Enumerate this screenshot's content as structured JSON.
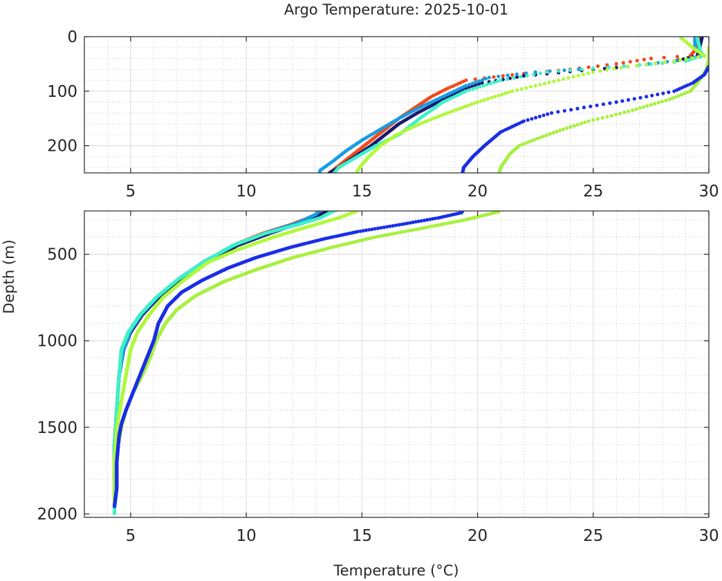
{
  "chart_data": {
    "type": "scatter",
    "title": "Argo Temperature: 2025-10-01",
    "xlabel": "Temperature (°C)",
    "ylabel": "Depth (m)",
    "grid": true,
    "panels": [
      {
        "name": "upper",
        "xlim": [
          3,
          30
        ],
        "ylim": [
          0,
          250
        ],
        "xticks": [
          5,
          10,
          15,
          20,
          25,
          30
        ],
        "yticks": [
          0,
          100,
          200
        ],
        "xtick_labels": [
          "5",
          "10",
          "15",
          "20",
          "25",
          "30"
        ],
        "ytick_labels": [
          "0",
          "100",
          "200"
        ]
      },
      {
        "name": "lower",
        "xlim": [
          3,
          30
        ],
        "ylim": [
          250,
          2020
        ],
        "xticks": [
          5,
          10,
          15,
          20,
          25,
          30
        ],
        "yticks": [
          500,
          1000,
          1500,
          2000
        ],
        "xtick_labels": [
          "5",
          "10",
          "15",
          "20",
          "25",
          "30"
        ],
        "ytick_labels": [
          "500",
          "1000",
          "1500",
          "2000"
        ]
      }
    ],
    "series": [
      {
        "name": "profile-orange",
        "color": "#f24a18",
        "points": [
          [
            29.6,
            2
          ],
          [
            29.5,
            20
          ],
          [
            29.2,
            35
          ],
          [
            27.5,
            40
          ],
          [
            26.0,
            50
          ],
          [
            24.0,
            60
          ],
          [
            21.5,
            70
          ],
          [
            19.5,
            80
          ],
          [
            18.7,
            95
          ],
          [
            18.0,
            110
          ],
          [
            17.3,
            130
          ],
          [
            16.6,
            150
          ],
          [
            16.0,
            170
          ],
          [
            15.4,
            190
          ],
          [
            14.8,
            210
          ],
          [
            14.2,
            230
          ],
          [
            13.6,
            250
          ],
          [
            12.9,
            280
          ],
          [
            11.9,
            330
          ],
          [
            10.7,
            380
          ],
          [
            9.4,
            450
          ],
          [
            8.2,
            550
          ],
          [
            7.1,
            650
          ],
          [
            6.2,
            750
          ],
          [
            5.5,
            850
          ],
          [
            5.0,
            950
          ],
          [
            4.7,
            1050
          ],
          [
            4.5,
            1200
          ],
          [
            4.4,
            1400
          ],
          [
            4.3,
            1600
          ],
          [
            4.3,
            1800
          ]
        ]
      },
      {
        "name": "profile-navy",
        "color": "#1a1a6e",
        "points": [
          [
            29.7,
            2
          ],
          [
            29.6,
            20
          ],
          [
            29.5,
            35
          ],
          [
            28.5,
            45
          ],
          [
            26.5,
            55
          ],
          [
            24.5,
            62
          ],
          [
            22.0,
            72
          ],
          [
            20.2,
            85
          ],
          [
            19.2,
            100
          ],
          [
            18.3,
            120
          ],
          [
            17.4,
            140
          ],
          [
            16.6,
            160
          ],
          [
            16.0,
            180
          ],
          [
            15.4,
            200
          ],
          [
            14.7,
            220
          ],
          [
            14.0,
            240
          ],
          [
            13.6,
            250
          ],
          [
            13.2,
            270
          ],
          [
            12.3,
            320
          ],
          [
            11.0,
            380
          ],
          [
            9.6,
            450
          ],
          [
            8.3,
            550
          ],
          [
            7.2,
            650
          ],
          [
            6.2,
            750
          ],
          [
            5.5,
            850
          ],
          [
            5.0,
            950
          ],
          [
            4.7,
            1050
          ],
          [
            4.5,
            1200
          ],
          [
            4.4,
            1400
          ],
          [
            4.3,
            1600
          ],
          [
            4.3,
            1800
          ]
        ]
      },
      {
        "name": "profile-lightblue",
        "color": "#1a9ce0",
        "points": [
          [
            29.4,
            2
          ],
          [
            29.4,
            20
          ],
          [
            29.8,
            35
          ],
          [
            29.0,
            42
          ],
          [
            27.0,
            52
          ],
          [
            25.0,
            58
          ],
          [
            22.5,
            65
          ],
          [
            20.5,
            75
          ],
          [
            19.5,
            90
          ],
          [
            18.5,
            110
          ],
          [
            17.5,
            130
          ],
          [
            16.6,
            150
          ],
          [
            15.8,
            170
          ],
          [
            15.0,
            190
          ],
          [
            14.3,
            210
          ],
          [
            13.7,
            230
          ],
          [
            13.2,
            245
          ],
          [
            13.0,
            270
          ],
          [
            12.2,
            320
          ],
          [
            11.0,
            370
          ],
          [
            9.6,
            440
          ],
          [
            8.2,
            540
          ],
          [
            7.1,
            640
          ],
          [
            6.2,
            740
          ],
          [
            5.5,
            840
          ],
          [
            5.0,
            940
          ],
          [
            4.7,
            1050
          ],
          [
            4.5,
            1200
          ],
          [
            4.4,
            1400
          ],
          [
            4.3,
            1600
          ],
          [
            4.3,
            1800
          ],
          [
            4.3,
            1920
          ]
        ]
      },
      {
        "name": "profile-cyan",
        "color": "#3ef0c8",
        "points": [
          [
            29.5,
            2
          ],
          [
            29.6,
            20
          ],
          [
            29.7,
            35
          ],
          [
            29.0,
            45
          ],
          [
            27.0,
            52
          ],
          [
            25.0,
            58
          ],
          [
            23.0,
            65
          ],
          [
            21.0,
            80
          ],
          [
            19.5,
            100
          ],
          [
            18.5,
            120
          ],
          [
            17.5,
            150
          ],
          [
            16.6,
            180
          ],
          [
            15.6,
            200
          ],
          [
            14.8,
            220
          ],
          [
            14.0,
            240
          ],
          [
            13.7,
            255
          ],
          [
            13.2,
            290
          ],
          [
            12.2,
            330
          ],
          [
            10.8,
            380
          ],
          [
            9.4,
            450
          ],
          [
            8.1,
            550
          ],
          [
            7.0,
            650
          ],
          [
            6.1,
            750
          ],
          [
            5.4,
            850
          ],
          [
            4.9,
            950
          ],
          [
            4.6,
            1050
          ],
          [
            4.5,
            1200
          ],
          [
            4.4,
            1400
          ],
          [
            4.3,
            1600
          ],
          [
            4.3,
            1800
          ],
          [
            4.3,
            2000
          ]
        ]
      },
      {
        "name": "profile-lime1",
        "color": "#b2f83c",
        "points": [
          [
            28.8,
            2
          ],
          [
            29.3,
            20
          ],
          [
            29.8,
            35
          ],
          [
            28.5,
            45
          ],
          [
            26.5,
            55
          ],
          [
            25.0,
            65
          ],
          [
            23.5,
            80
          ],
          [
            21.5,
            100
          ],
          [
            20.0,
            120
          ],
          [
            18.7,
            140
          ],
          [
            17.5,
            160
          ],
          [
            16.5,
            180
          ],
          [
            15.8,
            200
          ],
          [
            15.3,
            220
          ],
          [
            14.9,
            240
          ],
          [
            14.7,
            255
          ],
          [
            14.0,
            290
          ],
          [
            12.7,
            340
          ],
          [
            11.2,
            400
          ],
          [
            9.5,
            480
          ],
          [
            8.3,
            550
          ],
          [
            7.3,
            650
          ],
          [
            6.4,
            750
          ],
          [
            5.8,
            850
          ],
          [
            5.3,
            950
          ],
          [
            5.0,
            1050
          ],
          [
            4.8,
            1200
          ],
          [
            4.6,
            1350
          ],
          [
            4.4,
            1500
          ],
          [
            4.3,
            1700
          ],
          [
            4.3,
            1900
          ]
        ]
      },
      {
        "name": "profile-lime2",
        "color": "#a8f040",
        "points": [
          [
            30.0,
            20
          ],
          [
            30.0,
            40
          ],
          [
            29.9,
            60
          ],
          [
            29.6,
            80
          ],
          [
            29.2,
            100
          ],
          [
            28.3,
            115
          ],
          [
            27.5,
            125
          ],
          [
            26.7,
            135
          ],
          [
            25.8,
            145
          ],
          [
            24.8,
            155
          ],
          [
            23.7,
            170
          ],
          [
            22.7,
            185
          ],
          [
            21.8,
            200
          ],
          [
            21.4,
            215
          ],
          [
            21.0,
            240
          ],
          [
            20.9,
            255
          ],
          [
            19.5,
            300
          ],
          [
            17.6,
            350
          ],
          [
            15.6,
            400
          ],
          [
            13.7,
            460
          ],
          [
            12.0,
            520
          ],
          [
            10.4,
            590
          ],
          [
            9.0,
            660
          ],
          [
            7.8,
            740
          ],
          [
            7.0,
            820
          ],
          [
            6.5,
            900
          ],
          [
            6.1,
            1000
          ],
          [
            5.9,
            1080
          ],
          [
            5.5,
            1200
          ],
          [
            5.1,
            1300
          ],
          [
            4.8,
            1400
          ],
          [
            4.6,
            1500
          ],
          [
            4.4,
            1650
          ],
          [
            4.3,
            1800
          ],
          [
            4.3,
            1950
          ]
        ]
      },
      {
        "name": "profile-blue",
        "color": "#1a2ee6",
        "points": [
          [
            30.0,
            55
          ],
          [
            29.8,
            70
          ],
          [
            29.3,
            85
          ],
          [
            28.5,
            100
          ],
          [
            27.3,
            110
          ],
          [
            26.0,
            120
          ],
          [
            24.6,
            130
          ],
          [
            23.2,
            140
          ],
          [
            22.0,
            155
          ],
          [
            21.0,
            175
          ],
          [
            20.3,
            200
          ],
          [
            19.8,
            220
          ],
          [
            19.4,
            240
          ],
          [
            19.3,
            260
          ],
          [
            18.3,
            290
          ],
          [
            16.6,
            330
          ],
          [
            14.8,
            370
          ],
          [
            13.4,
            410
          ],
          [
            11.9,
            460
          ],
          [
            10.4,
            520
          ],
          [
            9.2,
            580
          ],
          [
            8.1,
            650
          ],
          [
            7.2,
            720
          ],
          [
            6.6,
            800
          ],
          [
            6.2,
            900
          ],
          [
            6.0,
            1000
          ],
          [
            5.7,
            1100
          ],
          [
            5.4,
            1200
          ],
          [
            5.1,
            1300
          ],
          [
            4.8,
            1400
          ],
          [
            4.6,
            1480
          ],
          [
            4.5,
            1550
          ],
          [
            4.4,
            1700
          ],
          [
            4.4,
            1850
          ],
          [
            4.3,
            1960
          ]
        ]
      }
    ]
  }
}
